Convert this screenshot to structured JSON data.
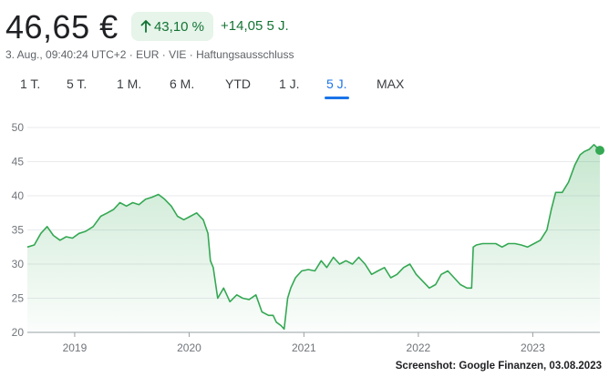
{
  "quote": {
    "price": "46,65 €",
    "change_percent": "43,10 %",
    "change_abs": "+14,05 5 J.",
    "subline": "3. Aug., 09:40:24 UTC+2 · EUR · VIE · Haftungsausschluss"
  },
  "tabs": [
    {
      "label": "1 T.",
      "active": false
    },
    {
      "label": "5 T.",
      "active": false
    },
    {
      "label": "1 M.",
      "active": false
    },
    {
      "label": "6 M.",
      "active": false
    },
    {
      "label": "YTD",
      "active": false
    },
    {
      "label": "1 J.",
      "active": false
    },
    {
      "label": "5 J.",
      "active": true
    },
    {
      "label": "MAX",
      "active": false
    }
  ],
  "colors": {
    "accent_green": "#34a853",
    "positive_text": "#137333",
    "positive_bg": "#e6f4ea",
    "active_tab": "#1a73e8"
  },
  "watermark": "Screenshot: Google Finanzen, 03.08.2023",
  "chart_data": {
    "type": "area",
    "title": "",
    "xlabel": "",
    "ylabel": "",
    "ylim": [
      20,
      50
    ],
    "yticks": [
      20,
      25,
      30,
      35,
      40,
      45,
      50
    ],
    "xticks": [
      "2019",
      "2020",
      "2021",
      "2022",
      "2023"
    ],
    "grid": true,
    "x": [
      "2018-08-03",
      "2018-08-25",
      "2018-09-15",
      "2018-10-05",
      "2018-10-25",
      "2018-11-15",
      "2018-12-05",
      "2018-12-25",
      "2019-01-15",
      "2019-02-05",
      "2019-03-01",
      "2019-03-25",
      "2019-04-15",
      "2019-05-05",
      "2019-05-25",
      "2019-06-15",
      "2019-07-05",
      "2019-07-25",
      "2019-08-15",
      "2019-09-05",
      "2019-09-25",
      "2019-10-15",
      "2019-11-05",
      "2019-11-25",
      "2019-12-15",
      "2020-01-05",
      "2020-01-25",
      "2020-02-15",
      "2020-03-01",
      "2020-03-09",
      "2020-03-18",
      "2020-04-01",
      "2020-04-20",
      "2020-05-10",
      "2020-06-01",
      "2020-06-20",
      "2020-07-10",
      "2020-08-01",
      "2020-08-20",
      "2020-09-10",
      "2020-09-25",
      "2020-10-05",
      "2020-10-20",
      "2020-10-30",
      "2020-11-10",
      "2020-11-20",
      "2020-12-05",
      "2020-12-25",
      "2021-01-15",
      "2021-02-05",
      "2021-02-25",
      "2021-03-15",
      "2021-04-05",
      "2021-04-25",
      "2021-05-15",
      "2021-06-05",
      "2021-06-25",
      "2021-07-15",
      "2021-08-05",
      "2021-08-25",
      "2021-09-15",
      "2021-10-05",
      "2021-10-25",
      "2021-11-15",
      "2021-12-05",
      "2021-12-25",
      "2022-01-15",
      "2022-02-05",
      "2022-02-25",
      "2022-03-15",
      "2022-04-05",
      "2022-04-25",
      "2022-05-15",
      "2022-06-05",
      "2022-06-20",
      "2022-06-25",
      "2022-07-05",
      "2022-07-25",
      "2022-08-15",
      "2022-09-05",
      "2022-09-25",
      "2022-10-15",
      "2022-11-05",
      "2022-11-25",
      "2022-12-15",
      "2023-01-05",
      "2023-01-25",
      "2023-02-15",
      "2023-03-01",
      "2023-03-15",
      "2023-04-05",
      "2023-04-25",
      "2023-05-15",
      "2023-06-01",
      "2023-06-15",
      "2023-06-30",
      "2023-07-15",
      "2023-08-03"
    ],
    "values": [
      32.5,
      32.8,
      34.5,
      35.5,
      34.2,
      33.5,
      34.0,
      33.8,
      34.5,
      34.8,
      35.5,
      37.0,
      37.5,
      38.0,
      39.0,
      38.5,
      39.0,
      38.7,
      39.5,
      39.8,
      40.2,
      39.5,
      38.5,
      37.0,
      36.5,
      37.0,
      37.5,
      36.5,
      34.5,
      30.5,
      29.5,
      25.0,
      26.5,
      24.5,
      25.5,
      25.0,
      24.8,
      25.5,
      23.0,
      22.5,
      22.5,
      21.5,
      21.0,
      20.5,
      25.0,
      26.5,
      28.0,
      29.0,
      29.2,
      29.0,
      30.5,
      29.5,
      31.0,
      30.0,
      30.5,
      30.0,
      31.0,
      30.0,
      28.5,
      29.0,
      29.5,
      28.0,
      28.5,
      29.5,
      30.0,
      28.5,
      27.5,
      26.5,
      27.0,
      28.5,
      29.0,
      28.0,
      27.0,
      26.5,
      26.5,
      32.5,
      32.8,
      33.0,
      33.0,
      33.0,
      32.5,
      33.0,
      33.0,
      32.8,
      32.5,
      33.0,
      33.5,
      35.0,
      38.0,
      40.5,
      40.5,
      42.0,
      44.5,
      46.0,
      46.5,
      46.8,
      47.5,
      46.65
    ]
  }
}
